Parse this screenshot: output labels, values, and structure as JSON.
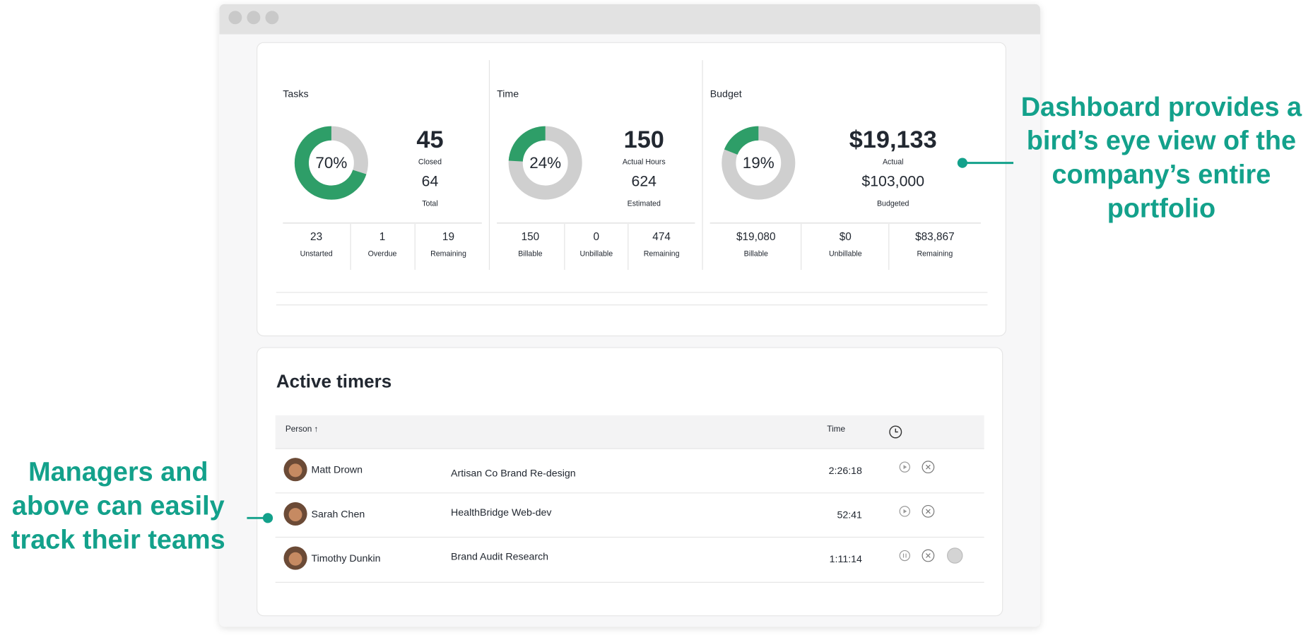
{
  "annotations": {
    "right": [
      "Dashboard provides a",
      "bird’s eye view of the",
      "company’s entire",
      "portfolio"
    ],
    "left": [
      "Managers and",
      "above can easily",
      "track their teams"
    ]
  },
  "summary": {
    "panels": [
      {
        "title": "Tasks",
        "percent": {
          "value": 70,
          "label": "70%"
        },
        "primary": {
          "value": "45",
          "label": "Closed"
        },
        "secondary": {
          "value": "64",
          "label": "Total"
        },
        "stats": [
          {
            "value": "23",
            "label": "Unstarted"
          },
          {
            "value": "1",
            "label": "Overdue"
          },
          {
            "value": "19",
            "label": "Remaining"
          }
        ]
      },
      {
        "title": "Time",
        "percent": {
          "value": 24,
          "label": "24%"
        },
        "primary": {
          "value": "150",
          "label": "Actual Hours"
        },
        "secondary": {
          "value": "624",
          "label": "Estimated"
        },
        "stats": [
          {
            "value": "150",
            "label": "Billable"
          },
          {
            "value": "0",
            "label": "Unbillable"
          },
          {
            "value": "474",
            "label": "Remaining"
          }
        ]
      },
      {
        "title": "Budget",
        "percent": {
          "value": 19,
          "label": "19%"
        },
        "primary": {
          "value": "$19,133",
          "label": "Actual"
        },
        "secondary": {
          "value": "$103,000",
          "label": "Budgeted"
        },
        "stats": [
          {
            "value": "$19,080",
            "label": "Billable"
          },
          {
            "value": "$0",
            "label": "Unbillable"
          },
          {
            "value": "$83,867",
            "label": "Remaining"
          }
        ]
      }
    ]
  },
  "timers": {
    "title": "Active timers",
    "columns": {
      "person": "Person ↑",
      "time": "Time"
    },
    "rows": [
      {
        "person": "Matt Drown",
        "project": "Artisan Co Brand Re-design",
        "time": "2:26:18"
      },
      {
        "person": "Sarah Chen",
        "project": "HealthBridge Web-dev",
        "time": "52:41"
      },
      {
        "person": "Timothy Dunkin",
        "project": "Brand Audit Research",
        "time": "1:11:14"
      }
    ]
  }
}
